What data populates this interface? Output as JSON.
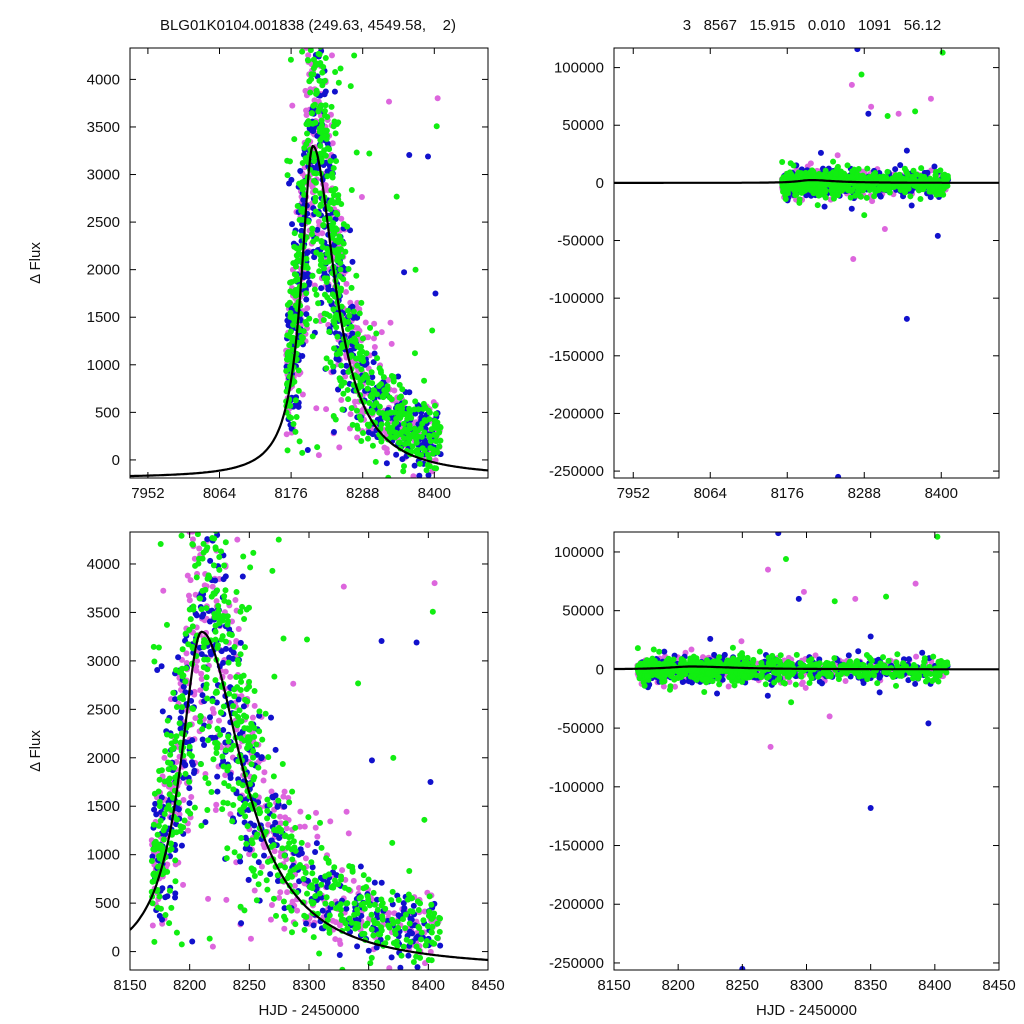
{
  "header": {
    "left": "BLG01K0104.001838 (249.63, 4549.58,    2)",
    "right": "3   8567   15.915   0.010   1091   56.12"
  },
  "colors": {
    "series": [
      "#dd66dd",
      "#1111cc",
      "#11ee11"
    ],
    "model": "#000000",
    "frame": "#000000"
  },
  "chart_data": [
    {
      "id": "top-left",
      "type": "scatter",
      "xlabel": "",
      "ylabel": "Δ Flux",
      "xlim": [
        7924,
        8484
      ],
      "ylim": [
        -190,
        4330
      ],
      "xticks": [
        7952,
        8064,
        8176,
        8288,
        8400
      ],
      "yticks": [
        0,
        500,
        1000,
        1500,
        2000,
        2500,
        3000,
        3500,
        4000
      ],
      "model": "lightcurve",
      "scatter": "flux"
    },
    {
      "id": "top-right",
      "type": "scatter",
      "xlabel": "",
      "ylabel": "",
      "xlim": [
        7924,
        8484
      ],
      "ylim": [
        -256000,
        117000
      ],
      "xticks": [
        7952,
        8064,
        8176,
        8288,
        8400
      ],
      "yticks": [
        100000,
        50000,
        0,
        -50000,
        -100000,
        -150000,
        -200000,
        -250000
      ],
      "model": "flat",
      "scatter": "residuals"
    },
    {
      "id": "bottom-left",
      "type": "scatter",
      "xlabel": "HJD - 2450000",
      "ylabel": "Δ Flux",
      "xlim": [
        8150,
        8450
      ],
      "ylim": [
        -190,
        4330
      ],
      "xticks": [
        8150,
        8200,
        8250,
        8300,
        8350,
        8400,
        8450
      ],
      "yticks": [
        0,
        500,
        1000,
        1500,
        2000,
        2500,
        3000,
        3500,
        4000
      ],
      "model": "lightcurve",
      "scatter": "flux"
    },
    {
      "id": "bottom-right",
      "type": "scatter",
      "xlabel": "HJD - 2450000",
      "ylabel": "",
      "xlim": [
        8150,
        8450
      ],
      "ylim": [
        -256000,
        117000
      ],
      "xticks": [
        8150,
        8200,
        8250,
        8300,
        8350,
        8400,
        8450
      ],
      "yticks": [
        100000,
        50000,
        0,
        -50000,
        -100000,
        -150000,
        -200000,
        -250000
      ],
      "model": "flat",
      "scatter": "residuals"
    }
  ],
  "model_curve": {
    "t0": 8210,
    "peak": 3300,
    "baseline": -190,
    "rise_width": 22,
    "decay_width": 42
  },
  "observations": {
    "t_range": [
      8168,
      8410
    ],
    "count_per_series": [
      480,
      430,
      700
    ]
  },
  "outliers": [
    {
      "series": 1,
      "x": 8278,
      "y": 116000
    },
    {
      "series": 2,
      "x": 8402,
      "y": 113000
    },
    {
      "series": 2,
      "x": 8284,
      "y": 94000
    },
    {
      "series": 0,
      "x": 8270,
      "y": 85000
    },
    {
      "series": 0,
      "x": 8385,
      "y": 73000
    },
    {
      "series": 0,
      "x": 8298,
      "y": 66000
    },
    {
      "series": 2,
      "x": 8362,
      "y": 62000
    },
    {
      "series": 1,
      "x": 8294,
      "y": 60000
    },
    {
      "series": 2,
      "x": 8322,
      "y": 58000
    },
    {
      "series": 0,
      "x": 8338,
      "y": 60000
    },
    {
      "series": 1,
      "x": 8350,
      "y": 28000
    },
    {
      "series": 1,
      "x": 8225,
      "y": 26000
    },
    {
      "series": 1,
      "x": 8395,
      "y": -46000
    },
    {
      "series": 0,
      "x": 8272,
      "y": -66000
    },
    {
      "series": 1,
      "x": 8350,
      "y": -118000
    },
    {
      "series": 1,
      "x": 8250,
      "y": -255000
    },
    {
      "series": 0,
      "x": 8318,
      "y": -40000
    },
    {
      "series": 2,
      "x": 8288,
      "y": -28000
    }
  ]
}
